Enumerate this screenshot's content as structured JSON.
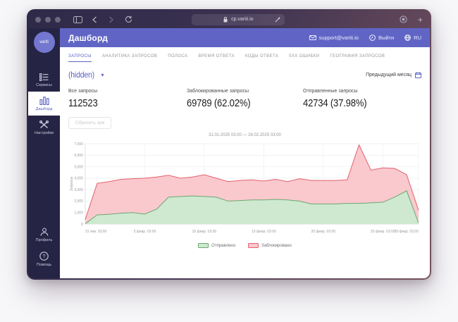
{
  "browser": {
    "url": "cp.variti.io",
    "new_tab_label": "+"
  },
  "app": {
    "header": {
      "title": "Дашборд",
      "email": "support@variti.io",
      "logout_label": "Выйти",
      "lang_label": "RU"
    },
    "sidebar": {
      "avatar_text": "variti",
      "items": [
        {
          "label": "Сервисы"
        },
        {
          "label": "Дашборд"
        },
        {
          "label": "Настройки"
        }
      ],
      "bottom_items": [
        {
          "label": "Профиль"
        },
        {
          "label": "Помощь"
        }
      ]
    },
    "tabs": [
      {
        "label": "ЗАПРОСЫ"
      },
      {
        "label": "АНАЛИТИКА ЗАПРОСОВ"
      },
      {
        "label": "ПОЛОСА"
      },
      {
        "label": "ВРЕМЯ ОТВЕТА"
      },
      {
        "label": "КОДЫ ОТВЕТА"
      },
      {
        "label": "5XX ОШИБКИ"
      },
      {
        "label": "ГЕОГРАФИЯ ЗАПРОСОВ"
      }
    ],
    "filter": {
      "selector_value": "(hidden)",
      "period_label": "Предыдущий месяц"
    },
    "stats": [
      {
        "label": "Все запросы",
        "value": "112523"
      },
      {
        "label": "Заблокированные запросы",
        "value": "69789 (62.02%)"
      },
      {
        "label": "Отправленные запросы",
        "value": "42734 (37.98%)"
      }
    ],
    "reset_zoom_label": "Сбросить зум"
  },
  "chart_data": {
    "type": "area",
    "stacked": true,
    "title": "31.01.2025 03:00 — 28.02.2025 03:00",
    "ylabel": "Запросы",
    "ylim": [
      0,
      7000
    ],
    "grid": true,
    "legend_position": "bottom",
    "y_ticks": [
      {
        "v": 0,
        "label": "0"
      },
      {
        "v": 1000,
        "label": "1,000"
      },
      {
        "v": 2000,
        "label": "2,000"
      },
      {
        "v": 3000,
        "label": "3,000"
      },
      {
        "v": 4000,
        "label": "4,000"
      },
      {
        "v": 5000,
        "label": "5,000"
      },
      {
        "v": 6000,
        "label": "6,000"
      },
      {
        "v": 7000,
        "label": "7,000"
      }
    ],
    "x": [
      "31 янв.",
      "1 февр.",
      "2 февр.",
      "3 февр.",
      "4 февр.",
      "5 февр.",
      "6 февр.",
      "7 февр.",
      "8 февр.",
      "9 февр.",
      "10 февр.",
      "11 февр.",
      "12 февр.",
      "13 февр.",
      "14 февр.",
      "15 февр.",
      "16 февр.",
      "17 февр.",
      "18 февр.",
      "19 февр.",
      "20 февр.",
      "21 февр.",
      "22 февр.",
      "23 февр.",
      "24 февр.",
      "25 февр.",
      "26 февр.",
      "27 февр.",
      "28 февр."
    ],
    "x_ticks": [
      {
        "index": 0,
        "label": "31 янв. 03:00"
      },
      {
        "index": 5,
        "label": "5 февр. 03:00"
      },
      {
        "index": 10,
        "label": "10 февр. 03:00"
      },
      {
        "index": 15,
        "label": "15 февр. 03:00"
      },
      {
        "index": 20,
        "label": "20 февр. 03:00"
      },
      {
        "index": 25,
        "label": "25 февр. 03:00"
      },
      {
        "index": 28,
        "label": "28 февр. 03:00"
      }
    ],
    "series": [
      {
        "name": "Отправлено",
        "color": "#6da671",
        "fill": "#cfe9d0",
        "values": [
          30,
          800,
          850,
          950,
          1000,
          870,
          1300,
          2350,
          2400,
          2450,
          2400,
          2350,
          2000,
          2050,
          2100,
          2100,
          2150,
          2100,
          2000,
          1750,
          1750,
          1750,
          1800,
          1800,
          1850,
          1900,
          2350,
          2900,
          100
        ]
      },
      {
        "name": "Заблокировано",
        "color": "#e4606a",
        "fill": "#f9c9ce",
        "values": [
          370,
          2750,
          2850,
          2950,
          2950,
          3130,
          2800,
          1900,
          1600,
          1650,
          1900,
          1650,
          1700,
          1750,
          1750,
          1650,
          1750,
          1600,
          1950,
          2050,
          2050,
          2050,
          2050,
          5100,
          2850,
          3000,
          2500,
          1400,
          1100
        ]
      }
    ]
  }
}
